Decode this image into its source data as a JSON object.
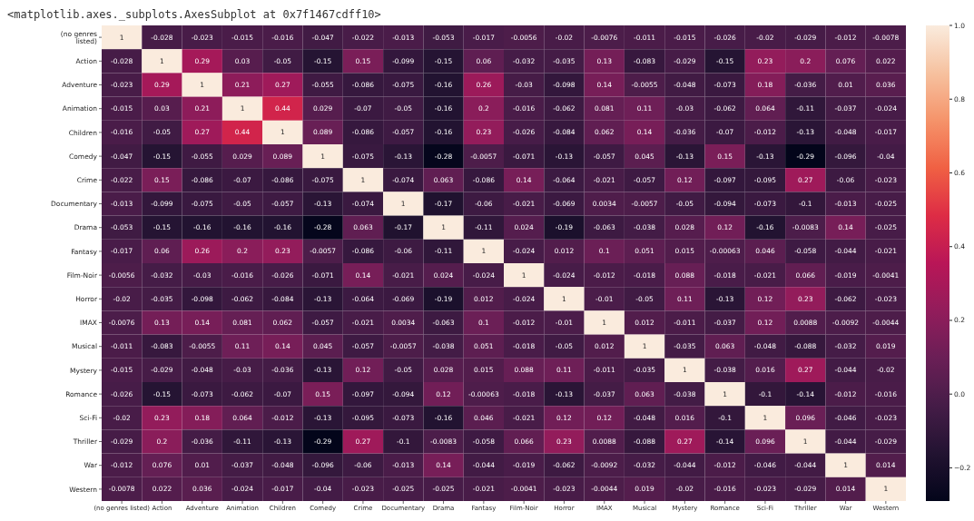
{
  "chart_data": {
    "type": "heatmap",
    "title": "<matplotlib.axes._subplots.AxesSubplot at 0x7f1467cdff10>",
    "categories": [
      "(no genres listed)",
      "Action",
      "Adventure",
      "Animation",
      "Children",
      "Comedy",
      "Crime",
      "Documentary",
      "Drama",
      "Fantasy",
      "Film-Noir",
      "Horror",
      "IMAX",
      "Musical",
      "Mystery",
      "Romance",
      "Sci-Fi",
      "Thriller",
      "War",
      "Western"
    ],
    "y_categories": [
      "(no genres listed)",
      "Action",
      "Adventure",
      "Animation",
      "Children",
      "Comedy",
      "Crime",
      "Documentary",
      "Drama",
      "Fantasy",
      "Film-Noir",
      "Horror",
      "IMAX",
      "Musical",
      "Mystery",
      "Romance",
      "Sci-Fi",
      "Thriller",
      "War",
      "Western"
    ],
    "cells": [
      [
        1,
        -0.028,
        -0.023,
        -0.015,
        -0.016,
        -0.047,
        -0.022,
        -0.013,
        -0.053,
        -0.017,
        -0.0056,
        -0.02,
        -0.0076,
        -0.011,
        -0.015,
        -0.026,
        -0.02,
        -0.029,
        -0.012,
        -0.0078
      ],
      [
        -0.028,
        1,
        0.29,
        0.03,
        -0.05,
        -0.15,
        0.15,
        -0.099,
        -0.15,
        0.06,
        -0.032,
        -0.035,
        0.13,
        -0.083,
        -0.029,
        -0.15,
        0.23,
        0.2,
        0.076,
        0.022
      ],
      [
        -0.023,
        0.29,
        1,
        0.21,
        0.27,
        -0.055,
        -0.086,
        -0.075,
        -0.16,
        0.26,
        -0.03,
        -0.098,
        0.14,
        -0.0055,
        -0.048,
        -0.073,
        0.18,
        -0.036,
        0.01,
        0.036
      ],
      [
        -0.015,
        0.03,
        0.21,
        1,
        0.44,
        0.029,
        -0.07,
        -0.05,
        -0.16,
        0.2,
        -0.016,
        -0.062,
        0.081,
        0.11,
        -0.03,
        -0.062,
        0.064,
        -0.11,
        -0.037,
        -0.024
      ],
      [
        -0.016,
        -0.05,
        0.27,
        0.44,
        1,
        0.089,
        -0.086,
        -0.057,
        -0.16,
        0.23,
        -0.026,
        -0.084,
        0.062,
        0.14,
        -0.036,
        -0.07,
        -0.012,
        -0.13,
        -0.048,
        -0.017
      ],
      [
        -0.047,
        -0.15,
        -0.055,
        0.029,
        0.089,
        1,
        -0.075,
        -0.13,
        -0.28,
        -0.0057,
        -0.071,
        -0.13,
        -0.057,
        0.045,
        -0.13,
        0.15,
        -0.13,
        -0.29,
        -0.096,
        -0.04
      ],
      [
        -0.022,
        0.15,
        -0.086,
        -0.07,
        -0.086,
        -0.075,
        1,
        -0.074,
        0.063,
        -0.086,
        0.14,
        -0.064,
        -0.021,
        -0.057,
        0.12,
        -0.097,
        -0.095,
        0.27,
        -0.06,
        -0.023
      ],
      [
        -0.013,
        -0.099,
        -0.075,
        -0.05,
        -0.057,
        -0.13,
        -0.074,
        1,
        -0.17,
        -0.06,
        -0.021,
        -0.069,
        0.0034,
        -0.0057,
        -0.05,
        -0.094,
        -0.073,
        -0.1,
        -0.013,
        -0.025
      ],
      [
        -0.053,
        -0.15,
        -0.16,
        -0.16,
        -0.16,
        -0.28,
        0.063,
        -0.17,
        1,
        -0.11,
        0.024,
        -0.19,
        -0.063,
        -0.038,
        0.028,
        0.12,
        -0.16,
        -0.0083,
        0.14,
        -0.025
      ],
      [
        -0.017,
        0.06,
        0.26,
        0.2,
        0.23,
        -0.0057,
        -0.086,
        -0.06,
        -0.11,
        1,
        -0.024,
        0.012,
        0.1,
        0.051,
        0.015,
        -0.00063,
        0.046,
        -0.058,
        -0.044,
        -0.021
      ],
      [
        -0.0056,
        -0.032,
        -0.03,
        -0.016,
        -0.026,
        -0.071,
        0.14,
        -0.021,
        0.024,
        -0.024,
        1,
        -0.024,
        -0.012,
        -0.018,
        0.088,
        -0.018,
        -0.021,
        0.066,
        -0.019,
        -0.0041
      ],
      [
        -0.02,
        -0.035,
        -0.098,
        -0.062,
        -0.084,
        -0.13,
        -0.064,
        -0.069,
        -0.19,
        0.012,
        -0.024,
        1,
        -0.01,
        -0.05,
        0.11,
        -0.13,
        0.12,
        0.23,
        -0.062,
        -0.023
      ],
      [
        -0.0076,
        0.13,
        0.14,
        0.081,
        0.062,
        -0.057,
        -0.021,
        0.0034,
        -0.063,
        0.1,
        -0.012,
        -0.01,
        1,
        0.012,
        -0.011,
        -0.037,
        0.12,
        0.0088,
        -0.0092,
        -0.0044
      ],
      [
        -0.011,
        -0.083,
        -0.0055,
        0.11,
        0.14,
        0.045,
        -0.057,
        -0.0057,
        -0.038,
        0.051,
        -0.018,
        -0.05,
        0.012,
        1,
        -0.035,
        0.063,
        -0.048,
        -0.088,
        -0.032,
        0.019
      ],
      [
        -0.015,
        -0.029,
        -0.048,
        -0.03,
        -0.036,
        -0.13,
        0.12,
        -0.05,
        0.028,
        0.015,
        0.088,
        0.11,
        -0.011,
        -0.035,
        1,
        -0.038,
        0.016,
        0.27,
        -0.044,
        -0.02
      ],
      [
        -0.026,
        -0.15,
        -0.073,
        -0.062,
        -0.07,
        0.15,
        -0.097,
        -0.094,
        0.12,
        -0.00063,
        -0.018,
        -0.13,
        -0.037,
        0.063,
        -0.038,
        1,
        -0.1,
        -0.14,
        -0.012,
        -0.016
      ],
      [
        -0.02,
        0.23,
        0.18,
        0.064,
        -0.012,
        -0.13,
        -0.095,
        -0.073,
        -0.16,
        0.046,
        -0.021,
        0.12,
        0.12,
        -0.048,
        0.016,
        -0.1,
        1,
        0.096,
        -0.046,
        -0.023
      ],
      [
        -0.029,
        0.2,
        -0.036,
        -0.11,
        -0.13,
        -0.29,
        0.27,
        -0.1,
        -0.0083,
        -0.058,
        0.066,
        0.23,
        0.0088,
        -0.088,
        0.27,
        -0.14,
        0.096,
        1,
        -0.044,
        -0.029
      ],
      [
        -0.012,
        0.076,
        0.01,
        -0.037,
        -0.048,
        -0.096,
        -0.06,
        -0.013,
        0.14,
        -0.044,
        -0.019,
        -0.062,
        -0.0092,
        -0.032,
        -0.044,
        -0.012,
        -0.046,
        -0.044,
        1,
        0.014
      ],
      [
        -0.0078,
        0.022,
        0.036,
        -0.024,
        -0.017,
        -0.04,
        -0.023,
        -0.025,
        -0.025,
        -0.021,
        -0.0041,
        -0.023,
        -0.0044,
        0.019,
        -0.02,
        -0.016,
        -0.023,
        -0.029,
        0.014,
        1
      ]
    ],
    "data_labels": true,
    "clim": [
      -0.29,
      1
    ],
    "cticks": [
      {
        "value": -0.2,
        "label": "−0.2"
      },
      {
        "value": 0,
        "label": "0.0"
      },
      0.2,
      0.4,
      0.6,
      0.8,
      {
        "value": 1,
        "label": "1.0"
      }
    ]
  }
}
